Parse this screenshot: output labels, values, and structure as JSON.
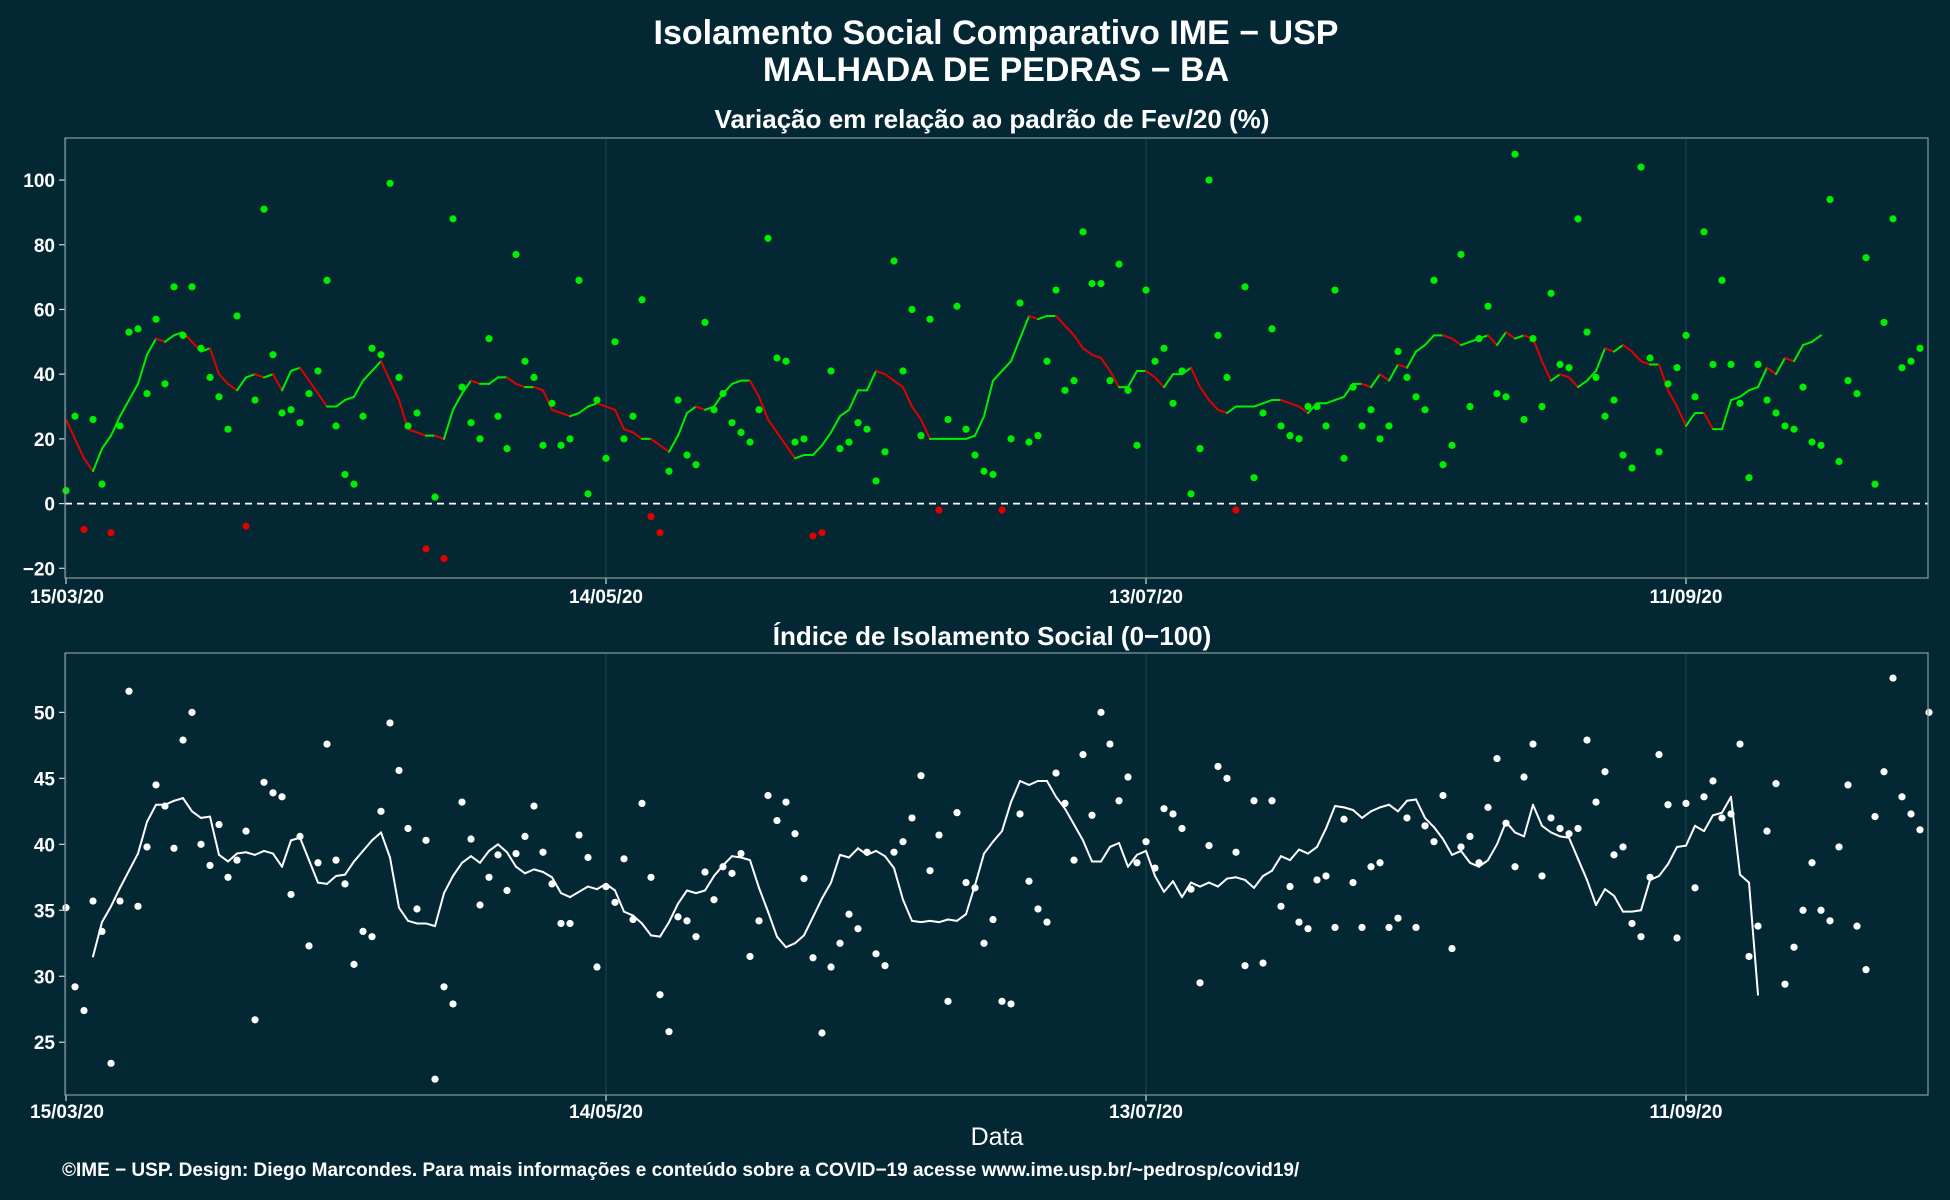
{
  "title": {
    "line1": "Isolamento Social Comparativo IME − USP",
    "line2": "MALHADA DE PEDRAS − BA"
  },
  "footer": "©IME − USP. Design: Diego Marcondes. Para mais informações e conteúdo sobre a COVID−19 acesse www.ime.usp.br/~pedrosp/covid19/",
  "colors": {
    "background": "#032834",
    "positive": "#00ee00",
    "negative": "#e00000",
    "index": "#ffffff"
  },
  "chart_data": [
    {
      "type": "line",
      "title": "Variação em relação ao padrão de Fev/20 (%)",
      "xlabel": "",
      "ylabel": "",
      "x_start": "15/03/20",
      "x_tick_labels": [
        "15/03/20",
        "14/05/20",
        "13/07/20",
        "11/09/20"
      ],
      "x_tick_days": [
        0,
        60,
        120,
        180
      ],
      "ylim": [
        -23,
        113
      ],
      "y_ticks": [
        -20,
        0,
        20,
        40,
        60,
        80,
        100
      ],
      "reference_line": 0,
      "grid": true,
      "series": [
        {
          "kind": "points",
          "values": [
            4,
            27,
            -8,
            26,
            6,
            -9,
            24,
            53,
            54,
            34,
            57,
            37,
            67,
            52,
            67,
            48,
            39,
            33,
            23,
            58,
            -7,
            32,
            91,
            46,
            28,
            29,
            25,
            34,
            41,
            69,
            24,
            9,
            6,
            27,
            48,
            46,
            99,
            39,
            24,
            28,
            -14,
            2,
            -17,
            88,
            36,
            25,
            20,
            51,
            27,
            17,
            77,
            44,
            39,
            18,
            31,
            18,
            20,
            69,
            3,
            32,
            14,
            50,
            20,
            27,
            63,
            -4,
            -9,
            10,
            32,
            15,
            12,
            56,
            29,
            34,
            25,
            22,
            19,
            29,
            82,
            45,
            44,
            19,
            20,
            -10,
            -9,
            41,
            17,
            19,
            25,
            23,
            7,
            16,
            75,
            41,
            60,
            21,
            57,
            -2,
            26,
            61,
            23,
            15,
            10,
            9,
            -2,
            20,
            62,
            19,
            21,
            44,
            66,
            35,
            38,
            84,
            68,
            68,
            38,
            74,
            35,
            18,
            66,
            44,
            48,
            31,
            41,
            3,
            17,
            100,
            52,
            39,
            -2,
            67,
            8,
            28,
            54,
            24,
            21,
            20,
            30,
            30,
            24,
            66,
            14,
            36,
            24,
            29,
            20,
            24,
            47,
            39,
            33,
            29,
            69,
            12,
            18,
            77,
            30,
            51,
            61,
            34,
            33,
            108,
            26,
            51,
            30,
            65,
            43,
            42,
            88,
            53,
            39,
            27,
            32,
            15,
            11,
            104,
            45,
            16,
            37,
            42,
            52,
            33,
            84,
            43,
            69,
            43,
            31,
            8,
            43,
            32,
            28,
            24,
            23,
            36,
            19,
            18,
            94,
            13,
            38,
            34,
            76,
            6,
            56,
            88,
            42,
            44,
            48
          ]
        },
        {
          "kind": "moving-average",
          "values": [
            26,
            20,
            14,
            10,
            17,
            21,
            27,
            32,
            37,
            46,
            51,
            50,
            52,
            53,
            50,
            47,
            48,
            40,
            37,
            35,
            39,
            40,
            39,
            40,
            35,
            41,
            42,
            38,
            34,
            30,
            30,
            32,
            33,
            38,
            41,
            44,
            38,
            32,
            23,
            22,
            21,
            21,
            20,
            29,
            34,
            38,
            37,
            37,
            39,
            39,
            37,
            36,
            36,
            35,
            29,
            28,
            27,
            28,
            30,
            31,
            30,
            29,
            23,
            22,
            20,
            20,
            18,
            16,
            21,
            28,
            30,
            29,
            30,
            34,
            37,
            38,
            38,
            33,
            26,
            22,
            18,
            14,
            15,
            15,
            18,
            22,
            27,
            29,
            35,
            35,
            41,
            40,
            38,
            36,
            30,
            26,
            20,
            20,
            20,
            20,
            20,
            21,
            27,
            38,
            41,
            44,
            51,
            58,
            57,
            58,
            58,
            55,
            52,
            48,
            46,
            45,
            41,
            36,
            36,
            41,
            41,
            39,
            36,
            40,
            40,
            42,
            36,
            32,
            29,
            28,
            30,
            30,
            30,
            31,
            32,
            32,
            31,
            30,
            28,
            31,
            31,
            32,
            33,
            37,
            37,
            36,
            40,
            38,
            43,
            42,
            47,
            49,
            52,
            52,
            51,
            49,
            50,
            51,
            52,
            49,
            53,
            51,
            52,
            51,
            44,
            38,
            40,
            39,
            36,
            38,
            41,
            48,
            47,
            49,
            47,
            44,
            43,
            43,
            35,
            30,
            24,
            28,
            28,
            23,
            23,
            32,
            33,
            35,
            36,
            42,
            40,
            45,
            44,
            49,
            50,
            52
          ]
        }
      ]
    },
    {
      "type": "line",
      "title": "Índice de Isolamento Social (0−100)",
      "xlabel": "Data",
      "ylabel": "",
      "x_start": "15/03/20",
      "x_tick_labels": [
        "15/03/20",
        "14/05/20",
        "13/07/20",
        "11/09/20"
      ],
      "x_tick_days": [
        0,
        60,
        120,
        180
      ],
      "ylim": [
        21,
        54.5
      ],
      "y_ticks": [
        25,
        30,
        35,
        40,
        45,
        50
      ],
      "grid": true,
      "series": [
        {
          "kind": "points",
          "values": [
            35.2,
            29.2,
            27.4,
            35.7,
            33.4,
            23.4,
            35.7,
            51.6,
            35.3,
            39.8,
            44.5,
            42.9,
            39.7,
            47.9,
            50.0,
            40.0,
            38.4,
            41.5,
            37.5,
            38.8,
            41.0,
            26.7,
            44.7,
            43.9,
            43.6,
            36.2,
            40.6,
            32.3,
            38.6,
            47.6,
            38.8,
            37.0,
            30.9,
            33.4,
            33.0,
            42.5,
            49.2,
            45.6,
            41.2,
            35.1,
            40.3,
            22.2,
            29.2,
            27.9,
            43.2,
            40.4,
            35.4,
            37.5,
            39.2,
            36.5,
            39.3,
            40.6,
            42.9,
            39.4,
            37.0,
            34.0,
            34.0,
            40.7,
            39.0,
            30.7,
            36.8,
            35.6,
            38.9,
            34.3,
            43.1,
            37.5,
            28.6,
            25.8,
            34.5,
            34.2,
            33.0,
            37.9,
            35.8,
            38.3,
            37.8,
            39.3,
            31.5,
            34.2,
            43.7,
            41.8,
            43.2,
            40.8,
            37.4,
            31.4,
            25.7,
            30.7,
            32.5,
            34.7,
            33.6,
            39.4,
            31.7,
            30.8,
            39.4,
            40.2,
            42.0,
            45.2,
            38.0,
            40.7,
            28.1,
            42.4,
            37.1,
            36.7,
            32.5,
            34.3,
            28.1,
            27.9,
            42.3,
            37.2,
            35.1,
            34.1,
            45.4,
            43.1,
            38.8,
            46.8,
            42.2,
            50.0,
            47.6,
            43.3,
            45.1,
            38.6,
            40.2,
            38.2,
            42.7,
            42.3,
            41.2,
            36.6,
            29.5,
            39.9,
            45.9,
            45.0,
            39.4,
            30.8,
            43.3,
            31.0,
            43.3,
            35.3,
            36.8,
            34.1,
            33.6,
            37.3,
            37.6,
            33.7,
            41.9,
            37.1,
            33.7,
            38.3,
            38.6,
            33.7,
            34.4,
            42.0,
            33.7,
            41.4,
            40.2,
            43.7,
            32.1,
            39.8,
            40.6,
            38.6,
            42.8,
            46.5,
            41.6,
            38.3,
            45.1,
            47.6,
            37.6,
            42.0,
            41.2,
            40.8,
            41.2,
            47.9,
            43.2,
            45.5,
            39.2,
            39.8,
            34.0,
            33.0,
            37.5,
            46.8,
            43.0,
            32.9,
            43.1,
            36.7,
            43.6,
            44.8,
            42.0,
            42.3,
            47.6,
            31.5,
            33.8,
            41.0,
            44.6,
            29.4,
            32.2,
            35.0,
            38.6,
            35.0,
            34.2,
            39.8,
            44.5,
            33.8,
            30.5,
            42.1,
            45.5,
            52.6,
            43.6,
            42.3,
            41.1,
            50.0
          ]
        },
        {
          "kind": "moving-average",
          "values": [
            null,
            null,
            null,
            31.5,
            34.1,
            35.3,
            36.7,
            38.0,
            39.3,
            41.7,
            43.0,
            43.0,
            43.3,
            43.5,
            42.5,
            42.0,
            42.1,
            39.2,
            38.7,
            39.3,
            39.4,
            39.2,
            39.5,
            39.3,
            38.3,
            40.3,
            40.5,
            38.8,
            37.1,
            37.0,
            37.6,
            37.7,
            38.7,
            39.5,
            40.3,
            40.9,
            39.0,
            35.2,
            34.2,
            34.0,
            34.0,
            33.8,
            36.3,
            37.6,
            38.6,
            39.1,
            38.6,
            39.5,
            40.0,
            39.4,
            38.3,
            37.8,
            38.1,
            37.9,
            37.5,
            36.3,
            36.0,
            36.4,
            36.8,
            36.6,
            37.0,
            36.5,
            34.9,
            34.6,
            34.0,
            33.1,
            33.0,
            34.1,
            35.5,
            36.5,
            36.3,
            36.5,
            37.6,
            38.4,
            39.1,
            39.0,
            38.8,
            36.7,
            34.9,
            33.0,
            32.2,
            32.5,
            33.1,
            34.5,
            35.9,
            37.1,
            39.2,
            39.0,
            39.7,
            39.2,
            39.5,
            39.1,
            38.2,
            35.8,
            34.2,
            34.1,
            34.2,
            34.1,
            34.3,
            34.2,
            34.7,
            36.9,
            39.3,
            40.2,
            41.0,
            43.2,
            44.8,
            44.5,
            44.8,
            44.8,
            43.6,
            42.7,
            41.5,
            40.3,
            38.7,
            38.7,
            39.8,
            40.1,
            38.3,
            39.2,
            39.5,
            37.6,
            36.4,
            37.2,
            36.0,
            37.1,
            36.8,
            37.1,
            36.8,
            37.4,
            37.5,
            37.3,
            36.7,
            37.6,
            38.0,
            39.1,
            38.8,
            39.6,
            39.3,
            39.8,
            41.2,
            42.9,
            42.8,
            42.6,
            42.0,
            42.5,
            42.8,
            43.0,
            42.5,
            43.3,
            43.4,
            42.0,
            41.3,
            40.4,
            39.2,
            39.5,
            38.6,
            38.3,
            38.8,
            40.0,
            41.7,
            40.9,
            40.6,
            43.0,
            41.4,
            40.9,
            40.6,
            40.5,
            38.9,
            37.3,
            35.4,
            36.6,
            36.1,
            34.9,
            34.9,
            35.0,
            37.3,
            37.6,
            38.5,
            39.8,
            39.9,
            41.4,
            41.0,
            42.2,
            42.4,
            43.6,
            37.7,
            37.1,
            28.6
          ]
        }
      ]
    }
  ]
}
